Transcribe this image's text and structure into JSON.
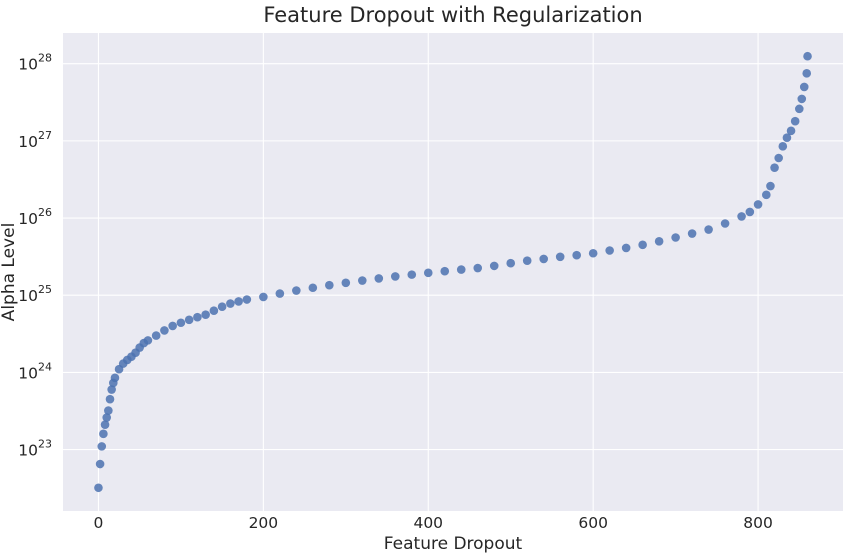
{
  "chart_data": {
    "type": "scatter",
    "title": "Feature Dropout with Regularization",
    "xlabel": "Feature Dropout",
    "ylabel": "Alpha Level",
    "x_ticks": [
      0,
      200,
      400,
      600,
      800
    ],
    "y_ticks": [
      {
        "base": "10",
        "exp": "23",
        "value": 1e+23
      },
      {
        "base": "10",
        "exp": "24",
        "value": 1e+24
      },
      {
        "base": "10",
        "exp": "25",
        "value": 1e+25
      },
      {
        "base": "10",
        "exp": "26",
        "value": 1e+26
      },
      {
        "base": "10",
        "exp": "27",
        "value": 1e+27
      },
      {
        "base": "10",
        "exp": "28",
        "value": 1e+28
      }
    ],
    "xlim": [
      -43,
      903
    ],
    "ylim": [
      1.6e+22,
      2.5e+28
    ],
    "yscale": "log",
    "grid": true,
    "series": [
      {
        "color": "#4c72b0",
        "x": [
          0,
          2,
          4,
          6,
          8,
          10,
          12,
          14,
          16,
          18,
          20,
          25,
          30,
          35,
          40,
          45,
          50,
          55,
          60,
          70,
          80,
          90,
          100,
          110,
          120,
          130,
          140,
          150,
          160,
          170,
          180,
          200,
          220,
          240,
          260,
          280,
          300,
          320,
          340,
          360,
          380,
          400,
          420,
          440,
          460,
          480,
          500,
          520,
          540,
          560,
          580,
          600,
          620,
          640,
          660,
          680,
          700,
          720,
          740,
          760,
          780,
          790,
          800,
          810,
          815,
          820,
          825,
          830,
          835,
          840,
          845,
          850,
          853,
          856,
          859,
          860
        ],
        "y": [
          3.2e+22,
          6.5e+22,
          1.1e+23,
          1.6e+23,
          2.1e+23,
          2.6e+23,
          3.2e+23,
          4.5e+23,
          6e+23,
          7.3e+23,
          8.5e+23,
          1.1e+24,
          1.3e+24,
          1.45e+24,
          1.6e+24,
          1.8e+24,
          2.1e+24,
          2.4e+24,
          2.6e+24,
          3e+24,
          3.5e+24,
          4e+24,
          4.4e+24,
          4.8e+24,
          5.2e+24,
          5.6e+24,
          6.3e+24,
          7.1e+24,
          7.8e+24,
          8.3e+24,
          8.8e+24,
          9.5e+24,
          1.05e+25,
          1.15e+25,
          1.25e+25,
          1.35e+25,
          1.45e+25,
          1.55e+25,
          1.65e+25,
          1.75e+25,
          1.85e+25,
          1.95e+25,
          2.05e+25,
          2.15e+25,
          2.25e+25,
          2.4e+25,
          2.6e+25,
          2.8e+25,
          2.95e+25,
          3.15e+25,
          3.3e+25,
          3.5e+25,
          3.8e+25,
          4.1e+25,
          4.5e+25,
          5e+25,
          5.6e+25,
          6.3e+25,
          7.1e+25,
          8.5e+25,
          1.05e+26,
          1.2e+26,
          1.5e+26,
          2e+26,
          2.6e+26,
          4.5e+26,
          6e+26,
          8.5e+26,
          1.1e+27,
          1.35e+27,
          1.8e+27,
          2.6e+27,
          3.5e+27,
          5e+27,
          7.5e+27,
          1.25e+28
        ]
      }
    ]
  }
}
